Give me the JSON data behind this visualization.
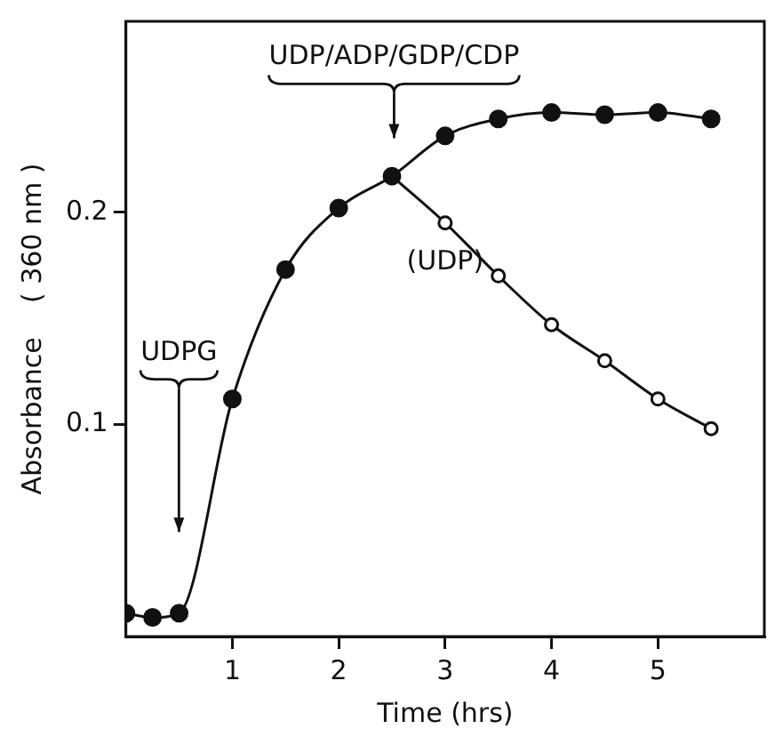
{
  "chart_data": {
    "type": "line",
    "xlabel": "Time (hrs)",
    "ylabel": "Absorbance    ( 360 nm )",
    "xlim": [
      0,
      6
    ],
    "ylim": [
      0,
      0.29
    ],
    "xticks": [
      1,
      2,
      3,
      4,
      5
    ],
    "yticks": [
      0.1,
      0.2
    ],
    "grid": false,
    "legend": false,
    "marker": "circle",
    "line_style": "solid",
    "series": [
      {
        "color": "#111111",
        "x": [
          0,
          0.25,
          0.5,
          1,
          1.5,
          2,
          2.5,
          3,
          3.5,
          4,
          4.5,
          5,
          5.5
        ],
        "values": [
          0.011,
          0.009,
          0.011,
          0.112,
          0.173,
          0.202,
          0.217,
          0.236,
          0.244,
          0.247,
          0.246,
          0.247,
          0.244
        ]
      },
      {
        "name": "(UDP)",
        "color": "#111111",
        "x": [
          2.5,
          3,
          3.5,
          4,
          4.5,
          5,
          5.5
        ],
        "values": [
          0.217,
          0.195,
          0.17,
          0.147,
          0.13,
          0.112,
          0.098
        ]
      }
    ],
    "annotations": [
      "UDPG",
      "UDP/ADP/GDP/CDP"
    ]
  }
}
